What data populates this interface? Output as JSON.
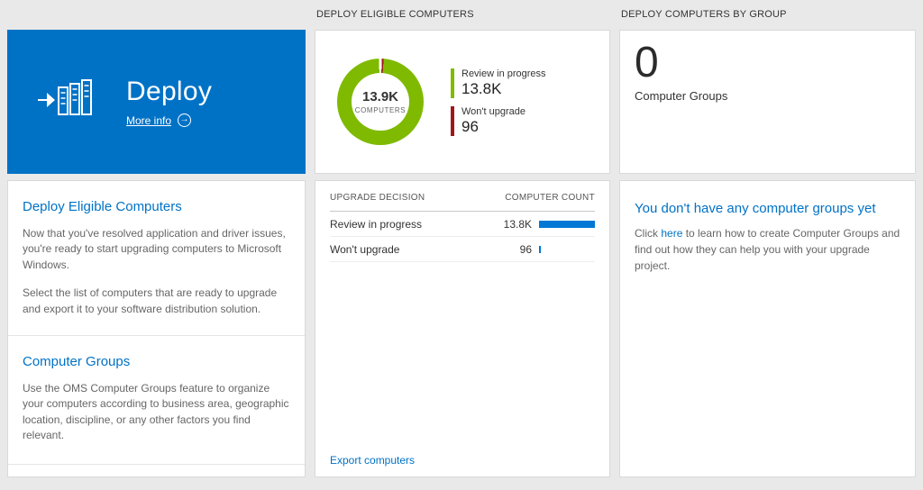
{
  "colors": {
    "tile_blue": "#0072c6",
    "link_blue": "#0072c6",
    "bar_blue": "#0078d4",
    "donut_green": "#7fba00",
    "donut_red": "#a0161b"
  },
  "left": {
    "tile": {
      "title": "Deploy",
      "more_info": "More info"
    },
    "sections": [
      {
        "heading": "Deploy Eligible Computers",
        "paragraphs": [
          "Now that you've resolved application and driver issues, you're ready to start upgrading computers to Microsoft Windows.",
          "Select the list of computers that are ready to upgrade and export it to your software distribution solution."
        ]
      },
      {
        "heading": "Computer Groups",
        "paragraphs": [
          "Use the OMS Computer Groups feature to organize your computers according to business area, geographic location, discipline, or any other factors you find relevant."
        ]
      }
    ]
  },
  "middle": {
    "header": "DEPLOY ELIGIBLE COMPUTERS",
    "legend": [
      {
        "label": "Review in progress",
        "value": "13.8K",
        "color": "#7fba00"
      },
      {
        "label": "Won't upgrade",
        "value": "96",
        "color": "#a0161b"
      }
    ],
    "table": {
      "col1": "UPGRADE DECISION",
      "col2": "COMPUTER COUNT",
      "rows": [
        {
          "label": "Review in progress",
          "value": "13.8K",
          "bar_pct": 100
        },
        {
          "label": "Won't upgrade",
          "value": "96",
          "bar_pct": 0.7
        }
      ]
    },
    "footer_link": "Export computers"
  },
  "right": {
    "header": "DEPLOY COMPUTERS BY GROUP",
    "count": "0",
    "count_label": "Computer Groups",
    "empty": {
      "heading": "You don't have any computer groups yet",
      "text_before": "Click ",
      "link": "here",
      "text_after": " to learn how to create Computer Groups and find out how they can help you with your upgrade project."
    }
  },
  "chart_data": {
    "type": "pie",
    "subtype": "donut",
    "title": "DEPLOY ELIGIBLE COMPUTERS",
    "labels": [
      "Review in progress",
      "Won't upgrade"
    ],
    "values": [
      13800,
      96
    ],
    "colors": [
      "#7fba00",
      "#a0161b"
    ],
    "center": {
      "value": "13.9K",
      "label": "COMPUTERS"
    },
    "legend_position": "right"
  }
}
